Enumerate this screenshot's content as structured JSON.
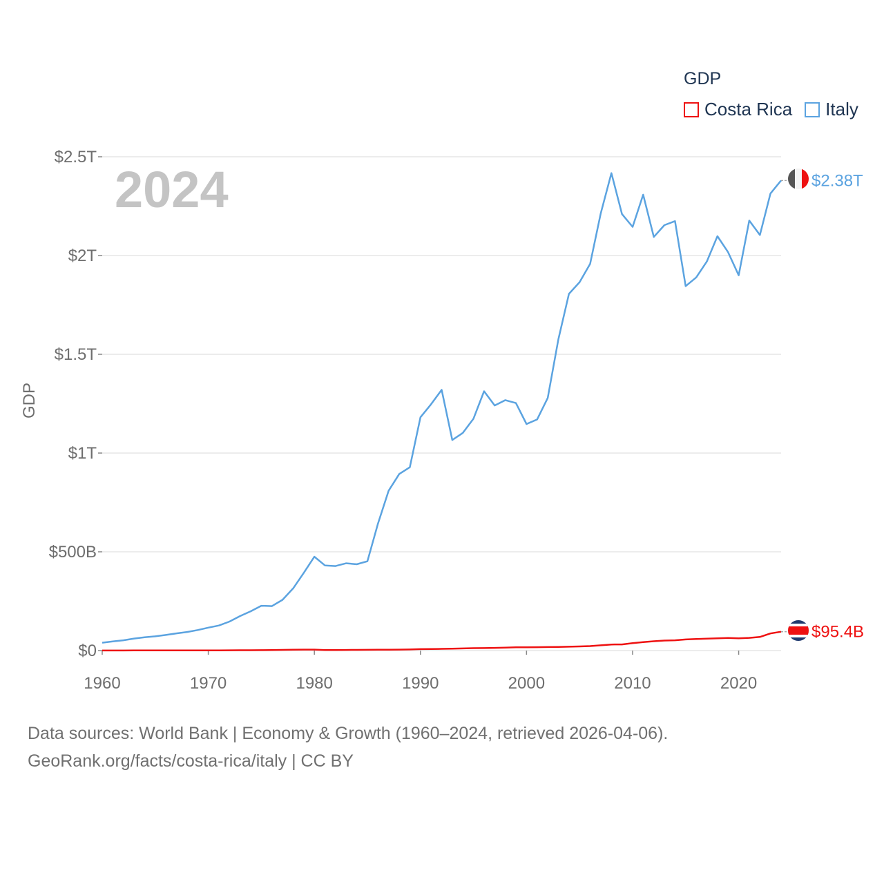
{
  "legend": {
    "title": "GDP",
    "items": [
      {
        "label": "Costa Rica",
        "color": "#ee1111"
      },
      {
        "label": "Italy",
        "color": "#5ba3e0"
      }
    ]
  },
  "source": {
    "line1": "Data sources: World Bank | Economy & Growth (1960–2024, retrieved 2026-04-06).",
    "line2": "GeoRank.org/facts/costa-rica/italy | CC BY"
  },
  "chart_data": {
    "type": "line",
    "year_label": "2024",
    "ylabel": "GDP",
    "xlim": [
      1960,
      2024
    ],
    "ylim": [
      0,
      2.5
    ],
    "y_unit": "trillion USD",
    "x_ticks": [
      1960,
      1970,
      1980,
      1990,
      2000,
      2010,
      2020
    ],
    "y_ticks": [
      {
        "value": 0,
        "label": "$0"
      },
      {
        "value": 0.5,
        "label": "$500B"
      },
      {
        "value": 1,
        "label": "$1T"
      },
      {
        "value": 1.5,
        "label": "$1.5T"
      },
      {
        "value": 2,
        "label": "$2T"
      },
      {
        "value": 2.5,
        "label": "$2.5T"
      }
    ],
    "x": [
      1960,
      1961,
      1962,
      1963,
      1964,
      1965,
      1966,
      1967,
      1968,
      1969,
      1970,
      1971,
      1972,
      1973,
      1974,
      1975,
      1976,
      1977,
      1978,
      1979,
      1980,
      1981,
      1982,
      1983,
      1984,
      1985,
      1986,
      1987,
      1988,
      1989,
      1990,
      1991,
      1992,
      1993,
      1994,
      1995,
      1996,
      1997,
      1998,
      1999,
      2000,
      2001,
      2002,
      2003,
      2004,
      2005,
      2006,
      2007,
      2008,
      2009,
      2010,
      2011,
      2012,
      2013,
      2014,
      2015,
      2016,
      2017,
      2018,
      2019,
      2020,
      2021,
      2022,
      2023,
      2024
    ],
    "series": [
      {
        "name": "Italy",
        "color": "#5ba3e0",
        "end_label": "$2.38T",
        "flag": "italy",
        "values": [
          0.04,
          0.046,
          0.052,
          0.061,
          0.067,
          0.072,
          0.079,
          0.087,
          0.094,
          0.104,
          0.116,
          0.127,
          0.147,
          0.175,
          0.199,
          0.227,
          0.225,
          0.257,
          0.315,
          0.393,
          0.475,
          0.431,
          0.428,
          0.442,
          0.437,
          0.452,
          0.643,
          0.809,
          0.894,
          0.928,
          1.181,
          1.247,
          1.32,
          1.066,
          1.102,
          1.174,
          1.313,
          1.241,
          1.268,
          1.253,
          1.147,
          1.17,
          1.279,
          1.576,
          1.806,
          1.865,
          1.958,
          2.214,
          2.417,
          2.21,
          2.145,
          2.308,
          2.094,
          2.154,
          2.174,
          1.845,
          1.889,
          1.97,
          2.098,
          2.017,
          1.9,
          2.177,
          2.104,
          2.314,
          2.38
        ]
      },
      {
        "name": "Costa Rica",
        "color": "#ee1111",
        "end_label": "$95.4B",
        "flag": "costa-rica",
        "values": [
          0.0005,
          0.0005,
          0.0005,
          0.0006,
          0.0006,
          0.0007,
          0.0007,
          0.0008,
          0.0009,
          0.001,
          0.001,
          0.0011,
          0.0013,
          0.0017,
          0.0019,
          0.0022,
          0.0027,
          0.0035,
          0.0041,
          0.0048,
          0.0048,
          0.0026,
          0.0025,
          0.003,
          0.0036,
          0.0039,
          0.0046,
          0.0047,
          0.005,
          0.0057,
          0.0073,
          0.0077,
          0.0088,
          0.0099,
          0.0107,
          0.0124,
          0.0127,
          0.0135,
          0.0149,
          0.0163,
          0.0169,
          0.0173,
          0.018,
          0.0187,
          0.0196,
          0.021,
          0.0227,
          0.0265,
          0.0307,
          0.0312,
          0.0376,
          0.0429,
          0.0473,
          0.0508,
          0.052,
          0.0562,
          0.0585,
          0.0603,
          0.0621,
          0.064,
          0.0622,
          0.0643,
          0.069,
          0.0867,
          0.0954
        ]
      }
    ]
  }
}
